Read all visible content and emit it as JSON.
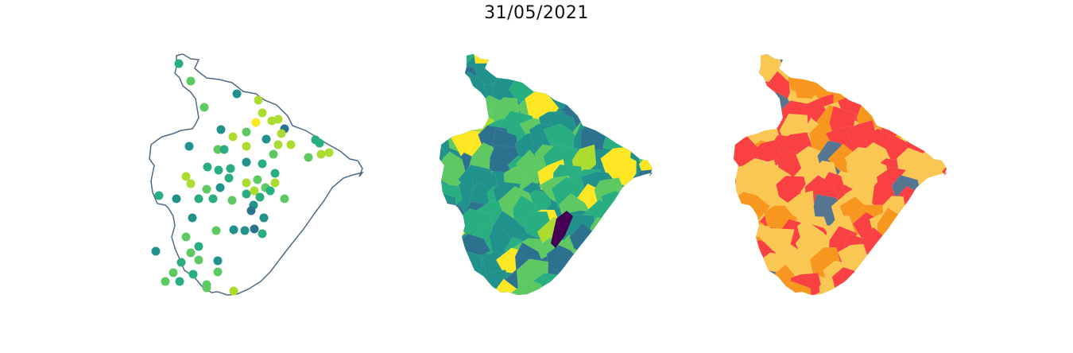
{
  "title": "31/05/2021",
  "colors": {
    "outline": "#4f6a85",
    "viridis": [
      "#440154",
      "#3b528b",
      "#2c728e",
      "#21918c",
      "#28ae80",
      "#5ec962",
      "#addc30",
      "#fde725"
    ],
    "classes": {
      "low": "#557590",
      "mid": "#f9c752",
      "high": "#f7971f",
      "very_high": "#f94144"
    }
  },
  "panels": [
    {
      "name": "point-map",
      "type": "points"
    },
    {
      "name": "choropleth-map",
      "type": "viridis"
    },
    {
      "name": "class-map",
      "type": "categorical"
    }
  ]
}
